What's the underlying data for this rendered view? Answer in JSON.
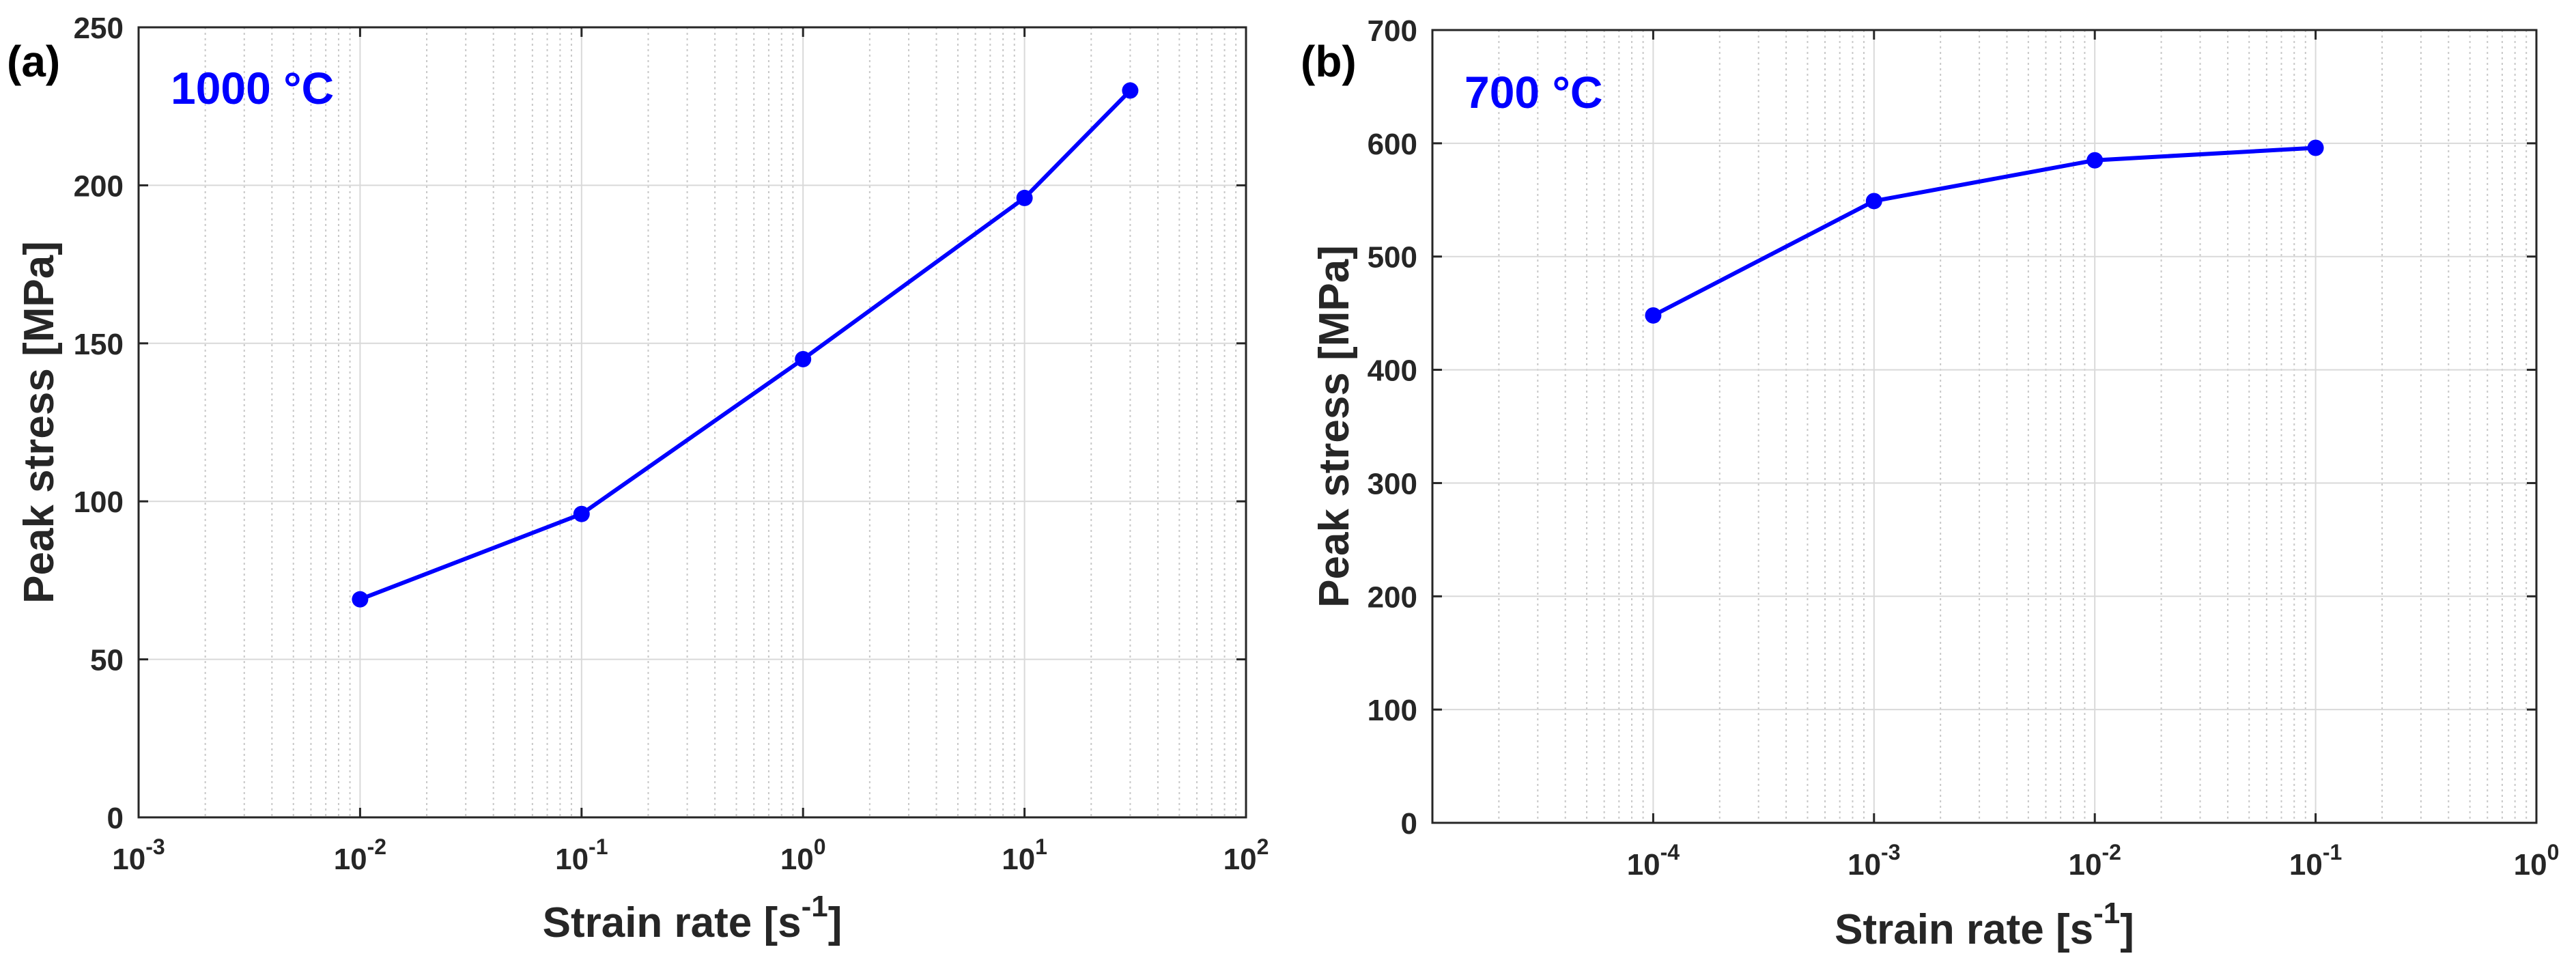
{
  "chart_data": [
    {
      "type": "line",
      "panel_label": "(a)",
      "annotation": "1000 °C",
      "xscale": "log",
      "xlim": [
        0.001,
        100
      ],
      "ylim": [
        0,
        250
      ],
      "xlabel_main": "Strain rate [s",
      "xlabel_sup": "-1",
      "xlabel_end": "]",
      "ylabel": "Peak stress [MPa]",
      "x_ticks": [
        {
          "exp": -3,
          "base": "10",
          "sup": "-3"
        },
        {
          "exp": -2,
          "base": "10",
          "sup": "-2"
        },
        {
          "exp": -1,
          "base": "10",
          "sup": "-1"
        },
        {
          "exp": 0,
          "base": "10",
          "sup": "0"
        },
        {
          "exp": 1,
          "base": "10",
          "sup": "1"
        },
        {
          "exp": 2,
          "base": "10",
          "sup": "2"
        }
      ],
      "y_ticks": [
        0,
        50,
        100,
        150,
        200,
        250
      ],
      "grid": true,
      "series": [
        {
          "name": "Peak stress",
          "color": "#0000ff",
          "x": [
            0.01,
            0.1,
            1,
            10,
            30
          ],
          "y": [
            69,
            96,
            145,
            196,
            230
          ]
        }
      ]
    },
    {
      "type": "line",
      "panel_label": "(b)",
      "annotation": "700 °C",
      "xscale": "log",
      "xlim": [
        1e-05,
        1
      ],
      "ylim": [
        0,
        700
      ],
      "xlabel_main": "Strain rate [s",
      "xlabel_sup": "-1",
      "xlabel_end": "]",
      "ylabel": "Peak stress [MPa]",
      "x_ticks": [
        {
          "exp": -4,
          "base": "10",
          "sup": "-4"
        },
        {
          "exp": -3,
          "base": "10",
          "sup": "-3"
        },
        {
          "exp": -2,
          "base": "10",
          "sup": "-2"
        },
        {
          "exp": -1,
          "base": "10",
          "sup": "-1"
        },
        {
          "exp": 0,
          "base": "10",
          "sup": "0"
        }
      ],
      "y_ticks": [
        0,
        100,
        200,
        300,
        400,
        500,
        600,
        700
      ],
      "grid": true,
      "series": [
        {
          "name": "Peak stress",
          "color": "#0000ff",
          "x": [
            0.0001,
            0.001,
            0.01,
            0.1
          ],
          "y": [
            448,
            549,
            585,
            596
          ]
        }
      ]
    }
  ]
}
